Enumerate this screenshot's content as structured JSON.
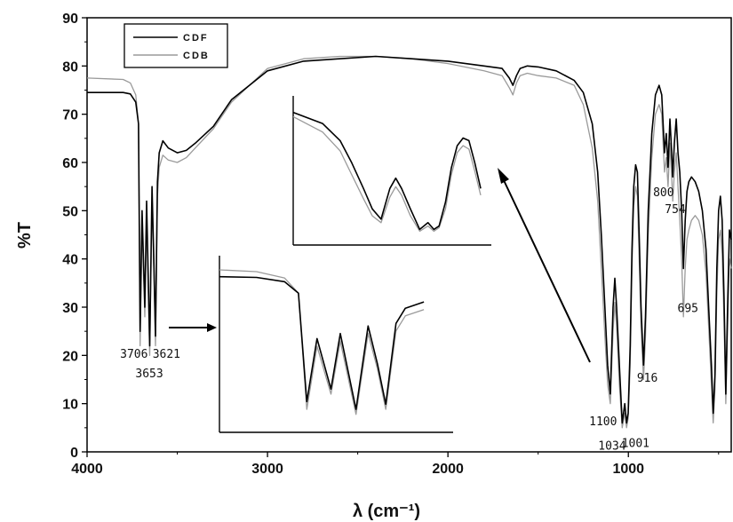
{
  "chart_data": {
    "type": "line",
    "xlabel": "λ (cm⁻¹)",
    "ylabel": "%T",
    "xlim": [
      4000,
      430
    ],
    "ylim": [
      0,
      90
    ],
    "x_ticks": [
      4000,
      3000,
      2000,
      1000
    ],
    "y_ticks": [
      0,
      10,
      20,
      30,
      40,
      50,
      60,
      70,
      80,
      90
    ],
    "legend": {
      "position": "top-left",
      "entries": [
        "CDF",
        "CDB"
      ]
    },
    "colors": {
      "CDF": "#000000",
      "CDB": "#9a9a9a"
    },
    "series": [
      {
        "name": "CDF",
        "x": [
          4000,
          3800,
          3760,
          3730,
          3715,
          3706,
          3695,
          3680,
          3670,
          3653,
          3640,
          3630,
          3621,
          3610,
          3600,
          3580,
          3550,
          3500,
          3450,
          3400,
          3300,
          3200,
          3000,
          2800,
          2600,
          2400,
          2200,
          2000,
          1800,
          1700,
          1660,
          1640,
          1620,
          1600,
          1560,
          1500,
          1400,
          1300,
          1250,
          1200,
          1170,
          1150,
          1130,
          1115,
          1100,
          1085,
          1075,
          1065,
          1050,
          1034,
          1020,
          1010,
          1001,
          990,
          980,
          970,
          960,
          950,
          940,
          930,
          916,
          905,
          890,
          870,
          850,
          830,
          815,
          800,
          790,
          780,
          770,
          760,
          754,
          745,
          735,
          725,
          715,
          705,
          695,
          685,
          675,
          665,
          650,
          630,
          610,
          590,
          570,
          555,
          540,
          530,
          520,
          510,
          500,
          490,
          480,
          470,
          460,
          450,
          440,
          430
        ],
        "y": [
          74.5,
          74.5,
          74.2,
          72.5,
          68.0,
          25.0,
          50.0,
          30.0,
          52.0,
          22.0,
          55.0,
          40.0,
          24.0,
          56.0,
          62.0,
          64.5,
          63.0,
          62.0,
          62.5,
          64.0,
          67.5,
          73.0,
          79.0,
          81.0,
          81.5,
          82.0,
          81.5,
          81.0,
          80.0,
          79.5,
          77.5,
          76.0,
          78.0,
          79.5,
          80.0,
          79.8,
          79.0,
          77.0,
          74.5,
          68.0,
          58.0,
          45.0,
          30.0,
          18.0,
          12.0,
          30.0,
          36.0,
          30.0,
          18.0,
          6.0,
          10.0,
          6.0,
          8.0,
          22.0,
          42.0,
          55.0,
          59.5,
          58.0,
          45.0,
          30.0,
          18.0,
          28.0,
          50.0,
          66.0,
          74.0,
          76.0,
          74.0,
          62.0,
          66.0,
          59.0,
          69.0,
          62.0,
          57.0,
          64.0,
          69.0,
          62.0,
          58.0,
          50.0,
          38.0,
          48.0,
          54.0,
          56.0,
          57.0,
          56.0,
          54.0,
          50.0,
          42.0,
          30.0,
          18.0,
          8.0,
          16.0,
          38.0,
          50.0,
          53.0,
          48.0,
          32.0,
          12.0,
          30.0,
          46.0,
          44.0
        ]
      },
      {
        "name": "CDB",
        "x": [
          4000,
          3800,
          3760,
          3730,
          3715,
          3706,
          3695,
          3680,
          3670,
          3653,
          3640,
          3630,
          3621,
          3610,
          3600,
          3580,
          3550,
          3500,
          3450,
          3400,
          3300,
          3200,
          3000,
          2800,
          2600,
          2400,
          2200,
          2000,
          1800,
          1700,
          1660,
          1640,
          1620,
          1600,
          1560,
          1500,
          1400,
          1300,
          1250,
          1200,
          1170,
          1150,
          1130,
          1115,
          1100,
          1085,
          1075,
          1065,
          1050,
          1034,
          1020,
          1010,
          1001,
          990,
          980,
          970,
          960,
          950,
          940,
          930,
          916,
          905,
          890,
          870,
          850,
          830,
          815,
          800,
          790,
          780,
          770,
          760,
          754,
          745,
          735,
          725,
          715,
          705,
          695,
          685,
          675,
          665,
          650,
          630,
          610,
          590,
          570,
          555,
          540,
          530,
          520,
          510,
          500,
          490,
          480,
          470,
          460,
          450,
          440,
          430
        ],
        "y": [
          77.5,
          77.2,
          76.5,
          74.0,
          68.0,
          22.0,
          47.0,
          28.0,
          49.0,
          20.0,
          52.0,
          38.0,
          22.0,
          53.0,
          59.0,
          61.5,
          60.5,
          60.0,
          61.0,
          63.0,
          67.0,
          72.5,
          79.5,
          81.5,
          82.0,
          82.0,
          81.5,
          80.5,
          79.0,
          78.0,
          75.5,
          74.0,
          76.5,
          78.0,
          78.5,
          78.0,
          77.5,
          76.0,
          72.0,
          63.0,
          52.0,
          38.0,
          24.0,
          14.0,
          10.0,
          25.0,
          31.0,
          26.0,
          14.0,
          5.0,
          8.0,
          5.0,
          7.0,
          18.0,
          38.0,
          51.0,
          55.0,
          53.0,
          40.0,
          26.0,
          15.0,
          24.0,
          45.0,
          61.0,
          70.0,
          72.0,
          70.0,
          58.0,
          61.0,
          55.0,
          64.0,
          57.0,
          52.0,
          58.0,
          62.0,
          55.0,
          48.0,
          40.0,
          28.0,
          38.0,
          44.0,
          46.0,
          48.0,
          49.0,
          48.0,
          45.0,
          37.0,
          26.0,
          14.0,
          6.0,
          13.0,
          33.0,
          44.0,
          46.0,
          41.0,
          27.0,
          10.0,
          25.0,
          40.0,
          38.0
        ]
      }
    ],
    "annotations": [
      {
        "text": "3706",
        "x": 3740,
        "y": 19.5
      },
      {
        "text": "3621",
        "x": 3560,
        "y": 19.5
      },
      {
        "text": "3653",
        "x": 3655,
        "y": 15.5
      },
      {
        "text": "1100",
        "x": 1140,
        "y": 5.5
      },
      {
        "text": "916",
        "x": 895,
        "y": 14.5
      },
      {
        "text": "1034",
        "x": 1090,
        "y": 0.5
      },
      {
        "text": "1001",
        "x": 960,
        "y": 1.0
      },
      {
        "text": "800",
        "x": 805,
        "y": 53.0
      },
      {
        "text": "754",
        "x": 740,
        "y": 49.5
      },
      {
        "text": "695",
        "x": 670,
        "y": 29.0
      }
    ]
  }
}
